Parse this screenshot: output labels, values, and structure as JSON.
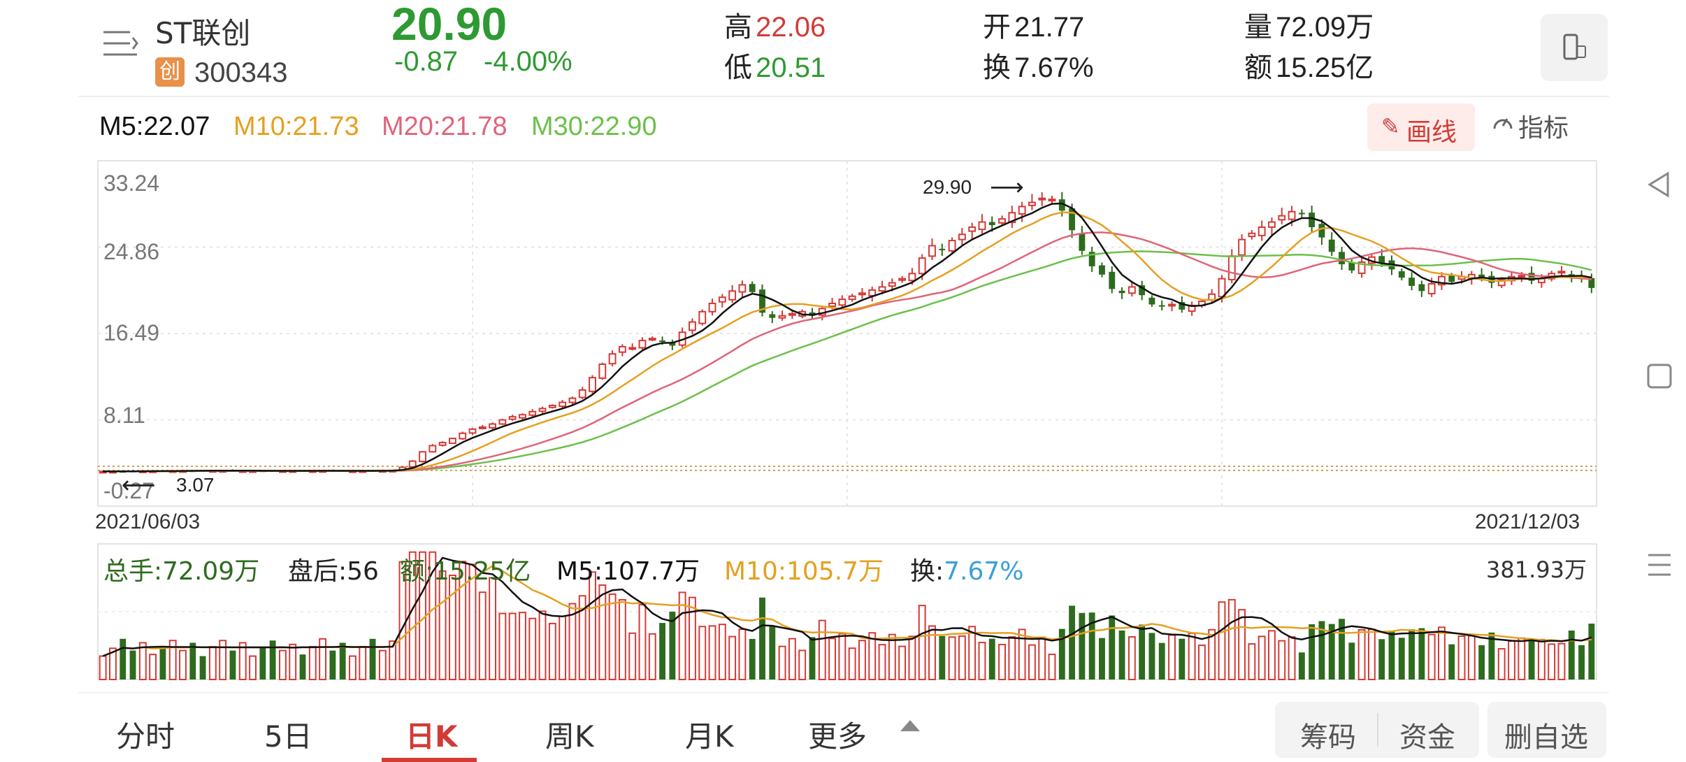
{
  "header": {
    "stock_name": "ST联创",
    "board_badge": "创",
    "stock_code": "300343",
    "price": "20.90",
    "change": "-0.87",
    "change_pct": "-4.00%",
    "high_label": "高",
    "high_value": "22.06",
    "low_label": "低",
    "low_value": "20.51",
    "open_label": "开",
    "open_value": "21.77",
    "turnover_label": "换",
    "turnover_value": "7.67%",
    "volume_label": "量",
    "volume_value": "72.09万",
    "amount_label": "额",
    "amount_value": "15.25亿",
    "menu_icon": "menu-icon",
    "switch_icon": "phone-rotate-icon"
  },
  "ma_legend": {
    "m5": "M5:22.07",
    "m10": "M10:21.73",
    "m20": "M20:21.78",
    "m30": "M30:22.90",
    "draw_button": "画线",
    "indicator_button": "指标"
  },
  "colors": {
    "up": "#d23b36",
    "down": "#2e6b1e",
    "m5": "#111111",
    "m10": "#e5a020",
    "m20": "#e0647a",
    "m30": "#6cc04a",
    "accent_green": "#2e9a32",
    "accent_red": "#d23b36",
    "turnover_blue": "#3ba0d8"
  },
  "chart_data": [
    {
      "type": "candlestick",
      "title": "",
      "y_ticks": [
        "33.24",
        "24.86",
        "16.49",
        "8.11",
        "-0.27"
      ],
      "ylim": [
        -0.27,
        33.24
      ],
      "x_start_label": "2021/06/03",
      "x_end_label": "2021/12/03",
      "max_marker": "29.90",
      "min_marker": "3.07",
      "grid": true,
      "closes": [
        3.1,
        3.1,
        3.11,
        3.12,
        3.13,
        3.14,
        3.15,
        3.15,
        3.16,
        3.17,
        3.17,
        3.18,
        3.18,
        3.17,
        3.16,
        3.16,
        3.15,
        3.15,
        3.16,
        3.16,
        3.15,
        3.16,
        3.17,
        3.16,
        3.15,
        3.15,
        3.16,
        3.17,
        3.18,
        3.2,
        3.5,
        4.1,
        5.0,
        5.6,
        5.9,
        6.3,
        6.8,
        7.2,
        7.4,
        7.7,
        8.1,
        8.4,
        8.6,
        8.9,
        9.2,
        9.5,
        9.8,
        10.2,
        11.0,
        12.2,
        13.5,
        14.5,
        15.2,
        15.1,
        15.8,
        16.0,
        15.7,
        15.3,
        16.6,
        17.6,
        18.6,
        19.4,
        20.0,
        20.6,
        21.2,
        20.5,
        18.5,
        18.0,
        18.2,
        18.4,
        18.6,
        18.2,
        18.9,
        19.4,
        19.8,
        20.1,
        20.4,
        20.7,
        21.0,
        21.4,
        21.8,
        22.3,
        23.8,
        25.0,
        24.6,
        25.5,
        26.1,
        26.8,
        27.3,
        27.0,
        27.6,
        28.2,
        28.8,
        29.2,
        29.6,
        29.5,
        28.4,
        26.5,
        24.5,
        23.0,
        22.2,
        20.8,
        20.4,
        21.0,
        20.2,
        19.3,
        19.1,
        19.3,
        18.8,
        19.2,
        19.6,
        20.3,
        21.8,
        24.0,
        25.6,
        26.2,
        26.8,
        27.3,
        27.9,
        28.3,
        28.1,
        26.8,
        25.8,
        24.4,
        23.2,
        22.6,
        23.4,
        23.9,
        23.3,
        22.7,
        21.9,
        21.1,
        20.6,
        21.3,
        22.0,
        21.5,
        22.0,
        22.2,
        21.9,
        21.4,
        21.7,
        22.0,
        22.1,
        21.6,
        21.8,
        22.3,
        22.5,
        22.07,
        21.77,
        20.9
      ],
      "volume_ylim_label": "381.93万"
    }
  ],
  "volume_legend": {
    "total": "总手:72.09万",
    "after_hours": "盘后:56",
    "amount": "额:15.25亿",
    "m5": "M5:107.7万",
    "m10": "M10:105.7万",
    "turnover_label": "换:",
    "turnover_value": "7.67%",
    "max_label": "381.93万"
  },
  "tabs": {
    "items": [
      "分时",
      "5日",
      "日K",
      "周K",
      "月K",
      "更多"
    ],
    "active": "日K"
  },
  "buttons": {
    "chips": "筹码",
    "funds": "资金",
    "remove_watch": "删自选"
  },
  "nav": {
    "back": "back-triangle-icon",
    "home": "home-square-icon",
    "menu": "menu-lines-icon"
  }
}
